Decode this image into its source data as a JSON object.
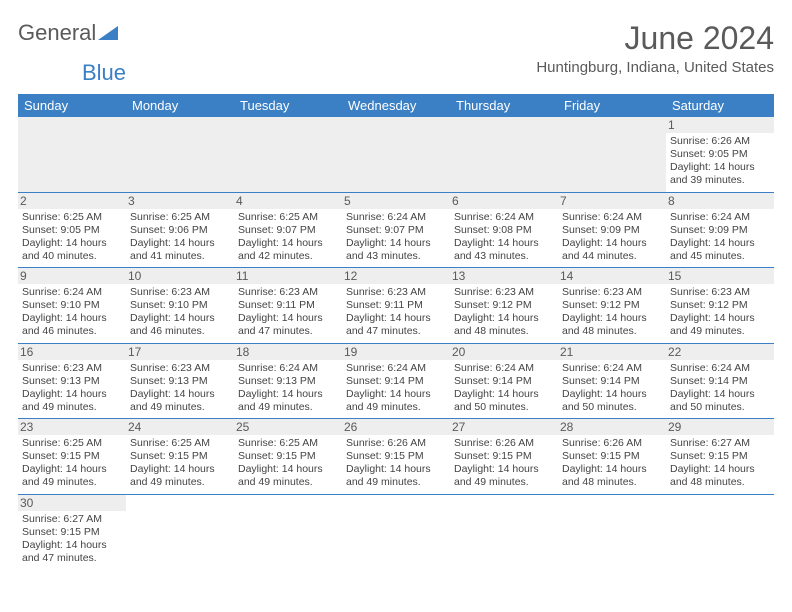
{
  "logo": {
    "text1": "General",
    "text2": "Blue",
    "triangle_color": "#3b7fc4"
  },
  "title": "June 2024",
  "location": "Huntingburg, Indiana, United States",
  "header_bg": "#3b7fc4",
  "daybar_bg": "#eeeeee",
  "weekdays": [
    "Sunday",
    "Monday",
    "Tuesday",
    "Wednesday",
    "Thursday",
    "Friday",
    "Saturday"
  ],
  "rows": [
    [
      null,
      null,
      null,
      null,
      null,
      null,
      {
        "n": "1",
        "sr": "Sunrise: 6:26 AM",
        "ss": "Sunset: 9:05 PM",
        "dl": "Daylight: 14 hours and 39 minutes."
      }
    ],
    [
      {
        "n": "2",
        "sr": "Sunrise: 6:25 AM",
        "ss": "Sunset: 9:05 PM",
        "dl": "Daylight: 14 hours and 40 minutes."
      },
      {
        "n": "3",
        "sr": "Sunrise: 6:25 AM",
        "ss": "Sunset: 9:06 PM",
        "dl": "Daylight: 14 hours and 41 minutes."
      },
      {
        "n": "4",
        "sr": "Sunrise: 6:25 AM",
        "ss": "Sunset: 9:07 PM",
        "dl": "Daylight: 14 hours and 42 minutes."
      },
      {
        "n": "5",
        "sr": "Sunrise: 6:24 AM",
        "ss": "Sunset: 9:07 PM",
        "dl": "Daylight: 14 hours and 43 minutes."
      },
      {
        "n": "6",
        "sr": "Sunrise: 6:24 AM",
        "ss": "Sunset: 9:08 PM",
        "dl": "Daylight: 14 hours and 43 minutes."
      },
      {
        "n": "7",
        "sr": "Sunrise: 6:24 AM",
        "ss": "Sunset: 9:09 PM",
        "dl": "Daylight: 14 hours and 44 minutes."
      },
      {
        "n": "8",
        "sr": "Sunrise: 6:24 AM",
        "ss": "Sunset: 9:09 PM",
        "dl": "Daylight: 14 hours and 45 minutes."
      }
    ],
    [
      {
        "n": "9",
        "sr": "Sunrise: 6:24 AM",
        "ss": "Sunset: 9:10 PM",
        "dl": "Daylight: 14 hours and 46 minutes."
      },
      {
        "n": "10",
        "sr": "Sunrise: 6:23 AM",
        "ss": "Sunset: 9:10 PM",
        "dl": "Daylight: 14 hours and 46 minutes."
      },
      {
        "n": "11",
        "sr": "Sunrise: 6:23 AM",
        "ss": "Sunset: 9:11 PM",
        "dl": "Daylight: 14 hours and 47 minutes."
      },
      {
        "n": "12",
        "sr": "Sunrise: 6:23 AM",
        "ss": "Sunset: 9:11 PM",
        "dl": "Daylight: 14 hours and 47 minutes."
      },
      {
        "n": "13",
        "sr": "Sunrise: 6:23 AM",
        "ss": "Sunset: 9:12 PM",
        "dl": "Daylight: 14 hours and 48 minutes."
      },
      {
        "n": "14",
        "sr": "Sunrise: 6:23 AM",
        "ss": "Sunset: 9:12 PM",
        "dl": "Daylight: 14 hours and 48 minutes."
      },
      {
        "n": "15",
        "sr": "Sunrise: 6:23 AM",
        "ss": "Sunset: 9:12 PM",
        "dl": "Daylight: 14 hours and 49 minutes."
      }
    ],
    [
      {
        "n": "16",
        "sr": "Sunrise: 6:23 AM",
        "ss": "Sunset: 9:13 PM",
        "dl": "Daylight: 14 hours and 49 minutes."
      },
      {
        "n": "17",
        "sr": "Sunrise: 6:23 AM",
        "ss": "Sunset: 9:13 PM",
        "dl": "Daylight: 14 hours and 49 minutes."
      },
      {
        "n": "18",
        "sr": "Sunrise: 6:24 AM",
        "ss": "Sunset: 9:13 PM",
        "dl": "Daylight: 14 hours and 49 minutes."
      },
      {
        "n": "19",
        "sr": "Sunrise: 6:24 AM",
        "ss": "Sunset: 9:14 PM",
        "dl": "Daylight: 14 hours and 49 minutes."
      },
      {
        "n": "20",
        "sr": "Sunrise: 6:24 AM",
        "ss": "Sunset: 9:14 PM",
        "dl": "Daylight: 14 hours and 50 minutes."
      },
      {
        "n": "21",
        "sr": "Sunrise: 6:24 AM",
        "ss": "Sunset: 9:14 PM",
        "dl": "Daylight: 14 hours and 50 minutes."
      },
      {
        "n": "22",
        "sr": "Sunrise: 6:24 AM",
        "ss": "Sunset: 9:14 PM",
        "dl": "Daylight: 14 hours and 50 minutes."
      }
    ],
    [
      {
        "n": "23",
        "sr": "Sunrise: 6:25 AM",
        "ss": "Sunset: 9:15 PM",
        "dl": "Daylight: 14 hours and 49 minutes."
      },
      {
        "n": "24",
        "sr": "Sunrise: 6:25 AM",
        "ss": "Sunset: 9:15 PM",
        "dl": "Daylight: 14 hours and 49 minutes."
      },
      {
        "n": "25",
        "sr": "Sunrise: 6:25 AM",
        "ss": "Sunset: 9:15 PM",
        "dl": "Daylight: 14 hours and 49 minutes."
      },
      {
        "n": "26",
        "sr": "Sunrise: 6:26 AM",
        "ss": "Sunset: 9:15 PM",
        "dl": "Daylight: 14 hours and 49 minutes."
      },
      {
        "n": "27",
        "sr": "Sunrise: 6:26 AM",
        "ss": "Sunset: 9:15 PM",
        "dl": "Daylight: 14 hours and 49 minutes."
      },
      {
        "n": "28",
        "sr": "Sunrise: 6:26 AM",
        "ss": "Sunset: 9:15 PM",
        "dl": "Daylight: 14 hours and 48 minutes."
      },
      {
        "n": "29",
        "sr": "Sunrise: 6:27 AM",
        "ss": "Sunset: 9:15 PM",
        "dl": "Daylight: 14 hours and 48 minutes."
      }
    ],
    [
      {
        "n": "30",
        "sr": "Sunrise: 6:27 AM",
        "ss": "Sunset: 9:15 PM",
        "dl": "Daylight: 14 hours and 47 minutes."
      },
      null,
      null,
      null,
      null,
      null,
      null
    ]
  ]
}
